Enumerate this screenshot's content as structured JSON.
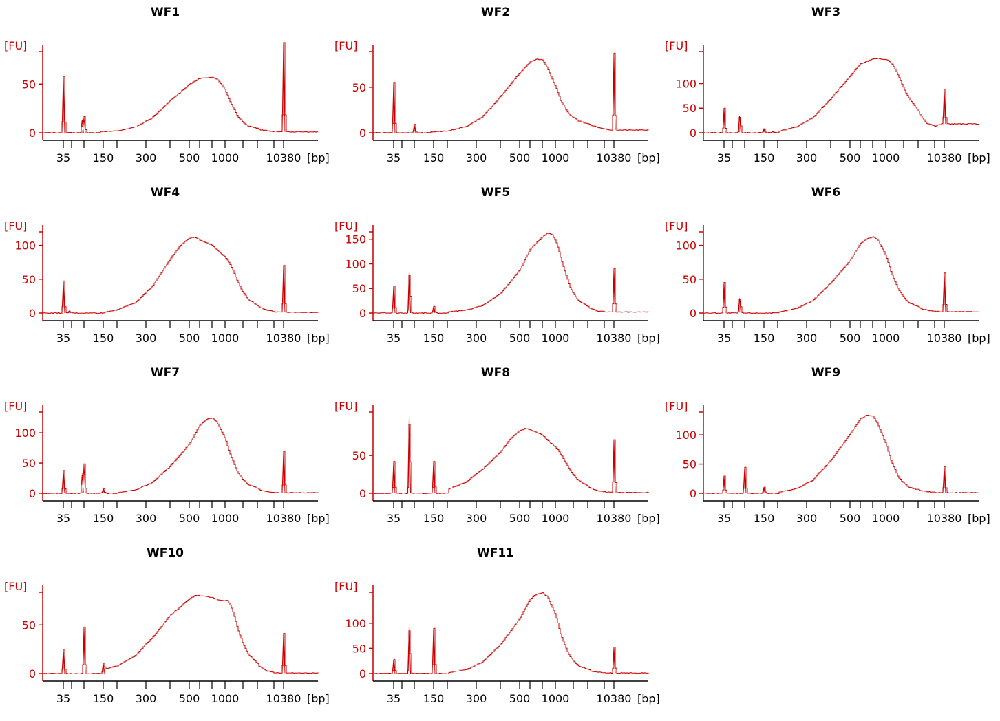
{
  "style": {
    "trace_color": "#cc0000",
    "axis_color_y": "#cc0000",
    "axis_color_x": "#000000"
  },
  "axis_text": {
    "y_unit": "[FU]",
    "x_unit": "[bp]"
  },
  "chart_data": [
    {
      "type": "line",
      "title": "WF1",
      "y_ticks": [
        0,
        50
      ],
      "ylim": [
        -3,
        87
      ],
      "x_ticks": [
        "35",
        "150",
        "300",
        "500",
        "1000",
        "10380"
      ],
      "peaks": [
        [
          35,
          58
        ],
        [
          90,
          13
        ],
        [
          100,
          16
        ],
        [
          10380,
          92
        ]
      ],
      "smear": [
        [
          140,
          1
        ],
        [
          200,
          2
        ],
        [
          260,
          6
        ],
        [
          320,
          15
        ],
        [
          400,
          33
        ],
        [
          500,
          50
        ],
        [
          600,
          56
        ],
        [
          700,
          57
        ],
        [
          800,
          55
        ],
        [
          950,
          47
        ],
        [
          1200,
          32
        ],
        [
          1600,
          17
        ],
        [
          2300,
          7
        ],
        [
          3500,
          3
        ],
        [
          6000,
          1.5
        ],
        [
          9000,
          1
        ]
      ]
    },
    {
      "type": "line",
      "title": "WF2",
      "y_ticks": [
        0,
        50
      ],
      "ylim": [
        -3,
        93
      ],
      "x_ticks": [
        "35",
        "150",
        "300",
        "500",
        "1000",
        "10380"
      ],
      "peaks": [
        [
          35,
          55
        ],
        [
          100,
          9
        ],
        [
          10380,
          84
        ]
      ],
      "smear": [
        [
          140,
          1
        ],
        [
          200,
          2
        ],
        [
          260,
          7
        ],
        [
          320,
          17
        ],
        [
          400,
          40
        ],
        [
          500,
          66
        ],
        [
          600,
          78
        ],
        [
          650,
          81
        ],
        [
          700,
          80
        ],
        [
          800,
          71
        ],
        [
          950,
          55
        ],
        [
          1200,
          36
        ],
        [
          1600,
          22
        ],
        [
          2300,
          13
        ],
        [
          3500,
          8
        ],
        [
          6000,
          5
        ],
        [
          9000,
          3
        ]
      ]
    },
    {
      "type": "line",
      "title": "WF3",
      "y_ticks": [
        0,
        50,
        100
      ],
      "ylim": [
        -6,
        172
      ],
      "x_ticks": [
        "35",
        "150",
        "300",
        "500",
        "1000",
        "10380"
      ],
      "peaks": [
        [
          35,
          50
        ],
        [
          75,
          35
        ],
        [
          150,
          8
        ],
        [
          180,
          3
        ],
        [
          10380,
          70
        ]
      ],
      "smear": [
        [
          200,
          3
        ],
        [
          260,
          12
        ],
        [
          320,
          30
        ],
        [
          400,
          70
        ],
        [
          500,
          116
        ],
        [
          600,
          140
        ],
        [
          700,
          150
        ],
        [
          800,
          151
        ],
        [
          950,
          149
        ],
        [
          1100,
          147
        ],
        [
          1300,
          138
        ],
        [
          1700,
          110
        ],
        [
          2300,
          70
        ],
        [
          3200,
          38
        ],
        [
          4500,
          20
        ],
        [
          7000,
          14
        ],
        [
          9500,
          18
        ]
      ]
    },
    {
      "type": "line",
      "title": "WF4",
      "y_ticks": [
        0,
        50,
        100
      ],
      "ylim": [
        -3,
        125
      ],
      "x_ticks": [
        "35",
        "150",
        "300",
        "500",
        "1000",
        "10380"
      ],
      "peaks": [
        [
          35,
          47
        ],
        [
          45,
          3
        ],
        [
          10380,
          69
        ]
      ],
      "smear": [
        [
          150,
          1
        ],
        [
          200,
          5
        ],
        [
          260,
          16
        ],
        [
          320,
          38
        ],
        [
          400,
          80
        ],
        [
          450,
          100
        ],
        [
          500,
          111
        ],
        [
          550,
          112
        ],
        [
          600,
          108
        ],
        [
          700,
          100
        ],
        [
          800,
          93
        ],
        [
          950,
          85
        ],
        [
          1100,
          78
        ],
        [
          1300,
          66
        ],
        [
          1700,
          42
        ],
        [
          2300,
          20
        ],
        [
          3200,
          9
        ],
        [
          4500,
          5
        ],
        [
          7000,
          2
        ],
        [
          9500,
          1
        ]
      ]
    },
    {
      "type": "line",
      "title": "WF5",
      "y_ticks": [
        0,
        50,
        100,
        150
      ],
      "ylim": [
        -5,
        172
      ],
      "x_ticks": [
        "35",
        "150",
        "300",
        "500",
        "1000",
        "10380"
      ],
      "peaks": [
        [
          35,
          55
        ],
        [
          75,
          85
        ],
        [
          150,
          13
        ],
        [
          10380,
          88
        ]
      ],
      "smear": [
        [
          200,
          2
        ],
        [
          260,
          6
        ],
        [
          320,
          15
        ],
        [
          400,
          40
        ],
        [
          500,
          88
        ],
        [
          600,
          130
        ],
        [
          700,
          155
        ],
        [
          800,
          163
        ],
        [
          900,
          160
        ],
        [
          1050,
          140
        ],
        [
          1300,
          100
        ],
        [
          1700,
          55
        ],
        [
          2300,
          25
        ],
        [
          3200,
          10
        ],
        [
          5000,
          4
        ],
        [
          9000,
          2
        ]
      ]
    },
    {
      "type": "line",
      "title": "WF6",
      "y_ticks": [
        0,
        50,
        100
      ],
      "ylim": [
        -3,
        125
      ],
      "x_ticks": [
        "35",
        "150",
        "300",
        "500",
        "1000",
        "10380"
      ],
      "peaks": [
        [
          35,
          45
        ],
        [
          75,
          22
        ],
        [
          10380,
          57
        ]
      ],
      "smear": [
        [
          200,
          1
        ],
        [
          260,
          7
        ],
        [
          320,
          18
        ],
        [
          400,
          45
        ],
        [
          500,
          78
        ],
        [
          600,
          103
        ],
        [
          650,
          110
        ],
        [
          700,
          113
        ],
        [
          800,
          108
        ],
        [
          950,
          90
        ],
        [
          1200,
          62
        ],
        [
          1600,
          35
        ],
        [
          2300,
          15
        ],
        [
          3500,
          6
        ],
        [
          6000,
          3
        ],
        [
          9000,
          2
        ]
      ]
    },
    {
      "type": "line",
      "title": "WF7",
      "y_ticks": [
        0,
        50,
        100
      ],
      "ylim": [
        -3,
        140
      ],
      "x_ticks": [
        "35",
        "150",
        "300",
        "500",
        "1000",
        "10380"
      ],
      "peaks": [
        [
          35,
          38
        ],
        [
          90,
          30
        ],
        [
          100,
          47
        ],
        [
          150,
          8
        ],
        [
          10380,
          68
        ]
      ],
      "smear": [
        [
          200,
          1
        ],
        [
          260,
          6
        ],
        [
          320,
          17
        ],
        [
          400,
          45
        ],
        [
          500,
          82
        ],
        [
          600,
          113
        ],
        [
          650,
          122
        ],
        [
          700,
          125
        ],
        [
          800,
          117
        ],
        [
          950,
          96
        ],
        [
          1200,
          65
        ],
        [
          1600,
          35
        ],
        [
          2300,
          14
        ],
        [
          3500,
          5
        ],
        [
          6000,
          2
        ],
        [
          9000,
          1
        ]
      ]
    },
    {
      "type": "line",
      "title": "WF8",
      "y_ticks": [
        0,
        50
      ],
      "ylim": [
        -3,
        112
      ],
      "x_ticks": [
        "35",
        "150",
        "300",
        "500",
        "1000",
        "10380"
      ],
      "peaks": [
        [
          35,
          42
        ],
        [
          75,
          102
        ],
        [
          150,
          42
        ],
        [
          10380,
          70
        ]
      ],
      "smear": [
        [
          200,
          5
        ],
        [
          260,
          15
        ],
        [
          320,
          31
        ],
        [
          400,
          55
        ],
        [
          450,
          73
        ],
        [
          500,
          83
        ],
        [
          550,
          86
        ],
        [
          600,
          84
        ],
        [
          700,
          77
        ],
        [
          800,
          70
        ],
        [
          950,
          63
        ],
        [
          1100,
          57
        ],
        [
          1300,
          48
        ],
        [
          1700,
          32
        ],
        [
          2300,
          17
        ],
        [
          3200,
          8
        ],
        [
          4500,
          4
        ],
        [
          7000,
          2
        ],
        [
          9500,
          1
        ]
      ]
    },
    {
      "type": "line",
      "title": "WF9",
      "y_ticks": [
        0,
        50,
        100
      ],
      "ylim": [
        -3,
        145
      ],
      "x_ticks": [
        "35",
        "150",
        "300",
        "500",
        "1000",
        "10380"
      ],
      "peaks": [
        [
          35,
          30
        ],
        [
          100,
          45
        ],
        [
          150,
          10
        ],
        [
          10380,
          45
        ]
      ],
      "smear": [
        [
          200,
          2
        ],
        [
          260,
          8
        ],
        [
          320,
          22
        ],
        [
          400,
          57
        ],
        [
          500,
          102
        ],
        [
          600,
          128
        ],
        [
          650,
          134
        ],
        [
          700,
          132
        ],
        [
          800,
          118
        ],
        [
          950,
          92
        ],
        [
          1200,
          57
        ],
        [
          1600,
          28
        ],
        [
          2300,
          10
        ],
        [
          3500,
          4
        ],
        [
          6000,
          2
        ],
        [
          9000,
          1
        ]
      ]
    },
    {
      "type": "line",
      "title": "WF10",
      "y_ticks": [
        0,
        50
      ],
      "ylim": [
        -3,
        87
      ],
      "x_ticks": [
        "35",
        "150",
        "300",
        "500",
        "1000",
        "10380"
      ],
      "peaks": [
        [
          35,
          25
        ],
        [
          100,
          48
        ],
        [
          150,
          11
        ],
        [
          10380,
          41
        ]
      ],
      "smear": [
        [
          150,
          4
        ],
        [
          200,
          8
        ],
        [
          260,
          19
        ],
        [
          320,
          36
        ],
        [
          400,
          60
        ],
        [
          500,
          77
        ],
        [
          550,
          80
        ],
        [
          600,
          80
        ],
        [
          700,
          78
        ],
        [
          800,
          76
        ],
        [
          950,
          75
        ],
        [
          1100,
          75
        ],
        [
          1300,
          66
        ],
        [
          1700,
          42
        ],
        [
          2300,
          20
        ],
        [
          3200,
          8
        ],
        [
          4500,
          3
        ],
        [
          7000,
          1
        ],
        [
          9500,
          0.5
        ]
      ]
    },
    {
      "type": "line",
      "title": "WF11",
      "y_ticks": [
        50,
        100,
        0
      ],
      "ylim": [
        -3,
        168
      ],
      "x_ticks": [
        "35",
        "150",
        "300",
        "500",
        "1000",
        "10380"
      ],
      "peaks": [
        [
          35,
          27
        ],
        [
          75,
          95
        ],
        [
          150,
          90
        ],
        [
          10380,
          52
        ]
      ],
      "smear": [
        [
          200,
          2
        ],
        [
          260,
          8
        ],
        [
          320,
          22
        ],
        [
          400,
          58
        ],
        [
          500,
          110
        ],
        [
          600,
          148
        ],
        [
          650,
          158
        ],
        [
          700,
          160
        ],
        [
          800,
          152
        ],
        [
          950,
          125
        ],
        [
          1200,
          80
        ],
        [
          1600,
          40
        ],
        [
          2300,
          15
        ],
        [
          3500,
          5
        ],
        [
          6000,
          2
        ],
        [
          9000,
          1
        ]
      ]
    }
  ]
}
